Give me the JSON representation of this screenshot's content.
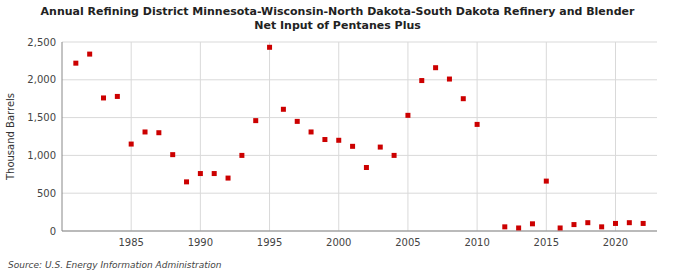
{
  "chart_data": {
    "type": "scatter",
    "title": "Annual Refining District Minnesota-Wisconsin-North Dakota-South Dakota Refinery and Blender\nNet Input of Pentanes Plus",
    "y_label": "Thousand Barrels",
    "source": "Source: U.S. Energy Information Administration",
    "color": "#cc0000",
    "marker": "square",
    "grid": true,
    "x": [
      1981,
      1982,
      1983,
      1984,
      1985,
      1986,
      1987,
      1988,
      1989,
      1990,
      1991,
      1992,
      1993,
      1994,
      1995,
      1996,
      1997,
      1998,
      1999,
      2000,
      2001,
      2002,
      2003,
      2004,
      2005,
      2006,
      2007,
      2008,
      2009,
      2010,
      2012,
      2013,
      2014,
      2015,
      2016,
      2017,
      2018,
      2019,
      2020,
      2021,
      2022
    ],
    "values": [
      2220,
      2340,
      1760,
      1780,
      1150,
      1310,
      1300,
      1010,
      650,
      760,
      760,
      700,
      1000,
      1460,
      2430,
      1610,
      1450,
      1310,
      1210,
      1200,
      1120,
      840,
      1110,
      1000,
      1530,
      1990,
      2160,
      2010,
      1750,
      1410,
      55,
      40,
      95,
      660,
      40,
      85,
      110,
      55,
      100,
      110,
      100
    ],
    "xlim": [
      1980,
      2023
    ],
    "ylim": [
      0,
      2500
    ],
    "xticks": [
      1985,
      1990,
      1995,
      2000,
      2005,
      2010,
      2015,
      2020
    ],
    "yticks": [
      0,
      500,
      {
        "value": 1000,
        "label": "1,000"
      },
      {
        "value": 1500,
        "label": "1,500"
      },
      {
        "value": 2000,
        "label": "2,000"
      },
      {
        "value": 2500,
        "label": "2,500"
      }
    ]
  }
}
